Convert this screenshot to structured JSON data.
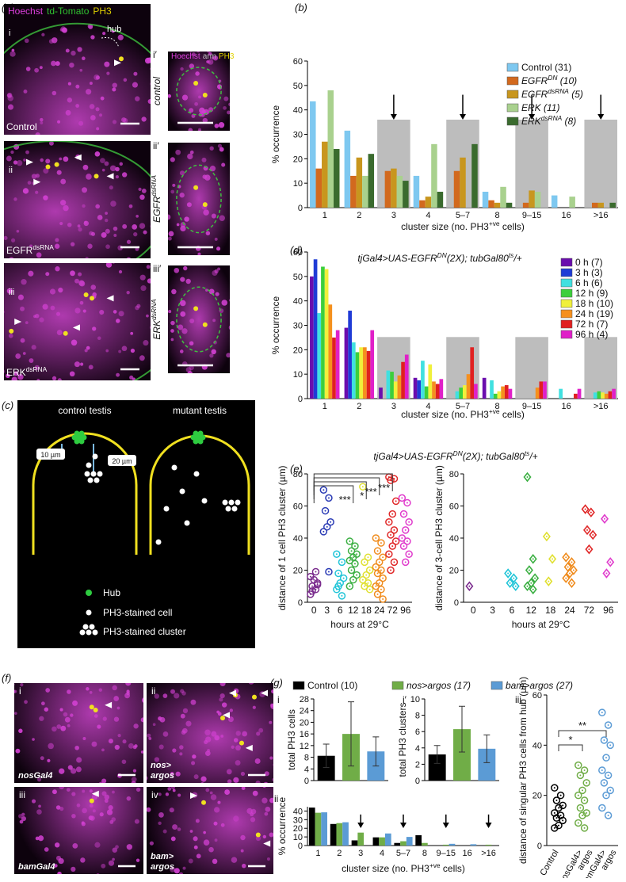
{
  "panel_labels": [
    "(a)",
    "(b)",
    "(c)",
    "(d)",
    "(e)",
    "(f)",
    "(g)"
  ],
  "panel_a": {
    "stains": [
      {
        "text": "Hoechst",
        "color": "#e040e0"
      },
      {
        "text": "td-Tomato",
        "color": "#30c030"
      },
      {
        "text": "PH3",
        "color": "#e0d000"
      }
    ],
    "inset_stains": [
      {
        "text": "Hoechst",
        "color": "#e040e0"
      },
      {
        "text": "arm",
        "color": "#bbbbbb"
      },
      {
        "text": "PH3",
        "color": "#e0d000"
      }
    ],
    "hub": "hub",
    "images": [
      {
        "numeral": "i",
        "genotype": [
          "Control"
        ]
      },
      {
        "numeral": "ii",
        "genotype": [
          "EGFR",
          {
            "sup": "dsRNA"
          }
        ]
      },
      {
        "numeral": "iii",
        "genotype": [
          "ERK",
          {
            "sup": "dsRNA"
          }
        ]
      }
    ],
    "insets": [
      {
        "numeral": "i′",
        "label": [
          "control"
        ]
      },
      {
        "numeral": "ii′",
        "label": [
          "EGFR",
          {
            "sup": "dsRNA"
          }
        ]
      },
      {
        "numeral": "iii′",
        "label": [
          "ERK",
          {
            "sup": "dsRNA"
          }
        ]
      }
    ]
  },
  "panel_c": {
    "titles": [
      "control testis",
      "mutant testis"
    ],
    "scale": [
      "10 µm",
      "20 µm"
    ],
    "legend": [
      "Hub",
      "PH3-stained cell",
      "PH3-stained cluster"
    ]
  },
  "panel_f": {
    "images": [
      {
        "numeral": "i",
        "label": [
          "nosGal4"
        ]
      },
      {
        "numeral": "ii",
        "label": [
          "nos>",
          "argos"
        ]
      },
      {
        "numeral": "iii",
        "label": [
          "bamGal4"
        ]
      },
      {
        "numeral": "iv",
        "label": [
          "bam>",
          "argos"
        ]
      }
    ]
  },
  "chart_data": [
    {
      "type": "bar",
      "categories": [
        "1",
        "2",
        "3",
        "4",
        "5–7",
        "8",
        "9–15",
        "16",
        ">16"
      ],
      "series": [
        {
          "name": [
            "Control (31)"
          ],
          "color": "#7ec8f0",
          "values": [
            43.5,
            31.5,
            0,
            13,
            0,
            6.5,
            0,
            5,
            0
          ]
        },
        {
          "name": [
            "EGFR",
            {
              "sup": "DN"
            },
            " (10)"
          ],
          "color": "#d2691e",
          "values": [
            16,
            13,
            15,
            3,
            15,
            3,
            2,
            0,
            2
          ]
        },
        {
          "name": [
            "EGFR",
            {
              "sup": "dsRNA"
            },
            " (5)"
          ],
          "color": "#c8961e",
          "values": [
            27,
            20.5,
            16,
            4.5,
            20.5,
            2,
            7,
            0,
            2
          ]
        },
        {
          "name": [
            "ERK (11)"
          ],
          "color": "#a9d18e",
          "values": [
            48,
            13,
            13,
            26,
            0,
            8.5,
            6.5,
            4.5,
            0
          ]
        },
        {
          "name": [
            "ERK",
            {
              "sup": "dsRNA"
            },
            " (8)"
          ],
          "color": "#3a6b2e",
          "values": [
            24,
            22,
            11,
            6.5,
            26,
            2,
            0,
            0,
            2
          ]
        }
      ],
      "ylim": [
        0,
        60
      ],
      "yticks": [
        0,
        10,
        20,
        30,
        40,
        50,
        60
      ],
      "ylabel": "% occurrence",
      "xlabel": [
        "cluster size (no. PH3",
        {
          "sup": "+ve"
        },
        " cells)"
      ],
      "shaded_categories": [
        "3",
        "5–7",
        "9–15",
        ">16"
      ],
      "arrow_categories": [
        "3",
        "5–7",
        "9–15",
        ">16"
      ]
    },
    {
      "type": "bar",
      "title": [
        "tjGal4>UAS-EGFR",
        {
          "sup": "DN"
        },
        "(2X); tubGal80",
        {
          "sup": "ts"
        },
        "/+"
      ],
      "categories": [
        "1",
        "2",
        "3",
        "4",
        "5–7",
        "8",
        "9–15",
        "16",
        ">16"
      ],
      "series": [
        {
          "name": [
            "0 h (7)"
          ],
          "color": "#6a0dad",
          "values": [
            50,
            29,
            4.5,
            8.5,
            0,
            8.5,
            0,
            0,
            0
          ]
        },
        {
          "name": [
            "3 h (3)"
          ],
          "color": "#1f3bd6",
          "values": [
            57,
            36,
            0,
            7.5,
            0,
            0,
            0,
            0,
            0
          ]
        },
        {
          "name": [
            "6 h (6)"
          ],
          "color": "#40e0e0",
          "values": [
            35,
            23,
            11.5,
            15.5,
            3,
            7.5,
            0,
            4,
            2.5
          ]
        },
        {
          "name": [
            "12 h (9)"
          ],
          "color": "#3ccf3c",
          "values": [
            54,
            19,
            11,
            5,
            4.5,
            2,
            0,
            0,
            3
          ]
        },
        {
          "name": [
            "18 h (10)"
          ],
          "color": "#f0f03c",
          "values": [
            53,
            21,
            7,
            14,
            5.5,
            3,
            0,
            0,
            2.5
          ]
        },
        {
          "name": [
            "24 h (19)"
          ],
          "color": "#f5901e",
          "values": [
            38.5,
            21,
            9.5,
            7,
            10,
            5,
            4.5,
            0,
            2
          ]
        },
        {
          "name": [
            "72 h (7)"
          ],
          "color": "#e02020",
          "values": [
            25,
            19.5,
            15,
            6,
            21,
            5.5,
            7,
            2,
            3
          ]
        },
        {
          "name": [
            "96 h (4)"
          ],
          "color": "#e020c8",
          "values": [
            28,
            28,
            18,
            8,
            6,
            4,
            7,
            4,
            4
          ]
        }
      ],
      "ylim": [
        0,
        60
      ],
      "yticks": [
        0,
        10,
        20,
        30,
        40,
        50,
        60
      ],
      "ylabel": "% occurrence",
      "xlabel": [
        "cluster size (no. PH3",
        {
          "sup": "+ve"
        },
        " cells)"
      ],
      "shaded_categories": [
        "3",
        "5–7",
        "9–15",
        ">16"
      ]
    },
    {
      "type": "strip",
      "title": [
        "tjGal4>UAS-EGFR",
        {
          "sup": "DN"
        },
        "(2X); tubGal80",
        {
          "sup": "ts"
        },
        "/+"
      ],
      "marker": "circle",
      "categories": [
        "0",
        "3",
        "6",
        "12",
        "18",
        "24",
        "72",
        "96"
      ],
      "colors": [
        "#7b2d8e",
        "#2a3bb5",
        "#22c5d8",
        "#3cb043",
        "#e0e030",
        "#f08c1e",
        "#e02828",
        "#e03ccc"
      ],
      "values": [
        [
          5,
          8,
          10,
          12,
          14,
          16,
          19,
          7,
          11
        ],
        [
          70,
          65,
          57,
          50,
          47,
          44,
          19
        ],
        [
          30,
          25,
          18,
          15,
          12,
          8,
          4,
          10
        ],
        [
          38,
          35,
          32,
          30,
          28,
          26,
          24,
          20,
          17,
          14,
          10
        ],
        [
          72,
          28,
          25,
          20,
          17,
          14,
          12,
          10,
          8
        ],
        [
          40,
          37,
          32,
          28,
          25,
          22,
          20,
          18,
          15,
          12,
          10,
          8,
          5,
          2
        ],
        [
          78,
          77,
          76,
          63,
          55,
          50,
          45,
          42,
          38,
          35,
          30,
          25,
          20
        ],
        [
          65,
          62,
          55,
          50,
          45,
          40,
          38,
          35,
          30,
          25
        ]
      ],
      "ylim": [
        0,
        80
      ],
      "yticks": [
        0,
        20,
        40,
        60,
        80
      ],
      "ylabel": "distance of 1 cell PH3 cluster (µm)",
      "xlabel": "hours at 29°C",
      "significance": [
        {
          "from": "0",
          "to": "12",
          "label": "***"
        },
        {
          "from": "0",
          "to": "18",
          "label": "*"
        },
        {
          "from": "0",
          "to": "24",
          "label": "***"
        },
        {
          "from": "0",
          "to": "72",
          "label": "***"
        }
      ]
    },
    {
      "type": "strip",
      "marker": "diamond",
      "categories": [
        "0",
        "3",
        "6",
        "12",
        "18",
        "24",
        "72",
        "96"
      ],
      "colors": [
        "#7b2d8e",
        "#2a3bb5",
        "#22c5d8",
        "#3cb043",
        "#e0e030",
        "#f08c1e",
        "#e02828",
        "#e03ccc"
      ],
      "values": [
        [
          10
        ],
        [],
        [
          18,
          15,
          12,
          10
        ],
        [
          78,
          27,
          20,
          15,
          12,
          10,
          8
        ],
        [
          41,
          27,
          13
        ],
        [
          28,
          25,
          22,
          20,
          18,
          15,
          12
        ],
        [
          58,
          56,
          45,
          42,
          33
        ],
        [
          52,
          25,
          18
        ]
      ],
      "ylim": [
        0,
        80
      ],
      "yticks": [
        0,
        20,
        40,
        60,
        80
      ],
      "ylabel": "distance of 3-cell PH3 cluster (µm)",
      "xlabel": "hours at 29°C"
    },
    {
      "type": "bar",
      "numeral": "i",
      "values": [
        8.5,
        16,
        10
      ],
      "errors": [
        4,
        11,
        5
      ],
      "colors": [
        "#000000",
        "#70ad47",
        "#5b9bd5"
      ],
      "ylim": [
        0,
        28
      ],
      "yticks": [
        0,
        4,
        8,
        12,
        16,
        20,
        24,
        28
      ],
      "ylabel": "total PH3 cells"
    },
    {
      "type": "bar",
      "numeral": "i′",
      "values": [
        3.2,
        6.3,
        3.9
      ],
      "errors": [
        1.1,
        2.8,
        1.7
      ],
      "colors": [
        "#000000",
        "#70ad47",
        "#5b9bd5"
      ],
      "ylim": [
        0,
        10
      ],
      "yticks": [
        0,
        2,
        4,
        6,
        8,
        10
      ],
      "ylabel": "total PH3 clusters"
    },
    {
      "type": "bar",
      "numeral": "ii",
      "categories": [
        "1",
        "2",
        "3",
        "4",
        "5–7",
        "8",
        "9–15",
        "16",
        ">16"
      ],
      "series": [
        {
          "name": [
            "Control (10)"
          ],
          "color": "#000000",
          "values": [
            44,
            25,
            6,
            9.5,
            3,
            12,
            0,
            0,
            0
          ]
        },
        {
          "name": [
            "nos>argos (17)"
          ],
          "color": "#70ad47",
          "values": [
            38,
            26,
            15,
            9.5,
            5,
            3,
            1,
            0,
            1
          ]
        },
        {
          "name": [
            "bam>argos (27)"
          ],
          "color": "#5b9bd5",
          "values": [
            38.5,
            27,
            0,
            14,
            10,
            0,
            2,
            1.5,
            0
          ]
        }
      ],
      "ylim": [
        0,
        45
      ],
      "yticks": [
        0,
        10,
        20,
        30,
        40
      ],
      "ylabel": "% occurrence",
      "xlabel": [
        "cluster size (no. PH3",
        {
          "sup": "+ve"
        },
        " cells)"
      ],
      "arrow_categories": [
        "3",
        "5–7",
        "9–15",
        ">16"
      ]
    },
    {
      "type": "strip",
      "numeral": "iii",
      "marker": "circle",
      "categories": [
        [
          "Control"
        ],
        [
          "nosGal4>",
          "argos"
        ],
        [
          "bamGal4>",
          "argos"
        ]
      ],
      "colors": [
        "#000000",
        "#70ad47",
        "#5b9bd5"
      ],
      "values": [
        [
          23,
          20,
          18,
          16,
          15,
          13,
          12,
          11,
          10,
          8,
          7
        ],
        [
          32,
          30,
          28,
          25,
          22,
          20,
          18,
          15,
          13,
          12,
          9,
          7
        ],
        [
          53,
          48,
          42,
          40,
          35,
          30,
          28,
          25,
          22,
          20,
          15,
          12
        ]
      ],
      "ylim": [
        0,
        60
      ],
      "yticks": [
        0,
        20,
        40,
        60
      ],
      "ylabel": "distance of singular PH3 cells from hub (µm)",
      "significance": [
        {
          "from": 0,
          "to": 1,
          "label": "*"
        },
        {
          "from": 0,
          "to": 2,
          "label": "**"
        }
      ]
    }
  ]
}
